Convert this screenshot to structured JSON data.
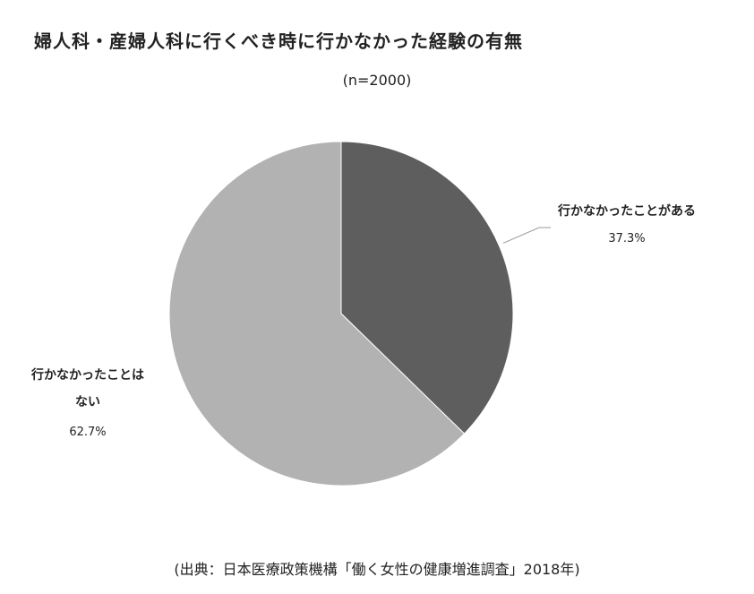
{
  "chart_data": {
    "type": "pie",
    "title": "婦人科・産婦人科に行くべき時に行かなかった経験の有無",
    "subtitle": "(n=2000)",
    "slices": [
      {
        "label": "行かなかったことがある",
        "value": 37.3,
        "value_label": "37.3%",
        "color": "#5e5e5e"
      },
      {
        "label_lines": [
          "行かなかったことは",
          "ない"
        ],
        "value": 62.7,
        "value_label": "62.7%",
        "color": "#b2b2b2"
      }
    ],
    "start": "12 o'clock",
    "direction": "clockwise"
  },
  "source": "(出典：日本医療政策機構「働く女性の健康増進調査」2018年)"
}
